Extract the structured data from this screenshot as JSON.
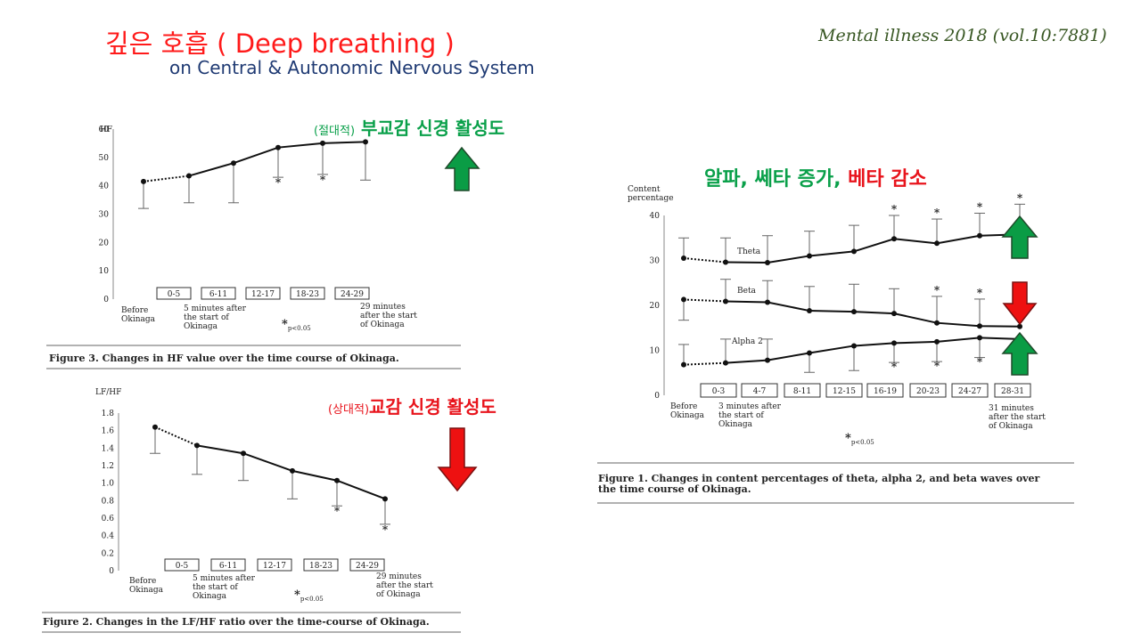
{
  "header": {
    "title": "깊은 호흡 ( Deep breathing )",
    "subtitle": "on Central & Autonomic Nervous System",
    "citation": "Mental illness 2018 (vol.10:7881)"
  },
  "annotations": {
    "hf_prefix": "(절대적)",
    "hf_text": "부교감 신경 활성도",
    "lfhf_prefix": "(상대적)",
    "lfhf_text": "교감 신경 활성도",
    "wave_increase": "알파, 쎄타 증가,",
    "wave_decrease": "베타 감소"
  },
  "colors": {
    "title": "#ff1a1a",
    "subtitle": "#1f3a73",
    "citation": "#385723",
    "annotation_green": "#0aa04a",
    "annotation_red": "#e8141c",
    "arrow_up": "#0a9c45",
    "arrow_down": "#ee1111"
  },
  "icons": {
    "increase": "arrow-up-icon",
    "decrease": "arrow-down-icon"
  },
  "chart_data": [
    {
      "type": "line",
      "title": "",
      "ylabel": "HF",
      "ylim": [
        0,
        60
      ],
      "yticks": [
        0,
        10,
        20,
        30,
        40,
        50,
        60
      ],
      "x_labels": [
        "Before Okinaga",
        "0-5",
        "6-11",
        "12-17",
        "18-23",
        "24-29"
      ],
      "start_note": "5 minutes after the start of Okinaga",
      "end_note": "29 minutes after the start of Okinaga",
      "significance_note": "*p<0.05",
      "series": [
        {
          "values": [
            41.5,
            43.5,
            48,
            53.5,
            55,
            55.5
          ],
          "error_low": [
            32,
            34,
            34,
            43,
            44,
            42
          ],
          "significant": [
            false,
            false,
            false,
            true,
            true,
            false
          ]
        }
      ],
      "caption": "Figure 3. Changes in HF value over the time course of Okinaga."
    },
    {
      "type": "line",
      "title": "",
      "ylabel": "LF/HF",
      "ylim": [
        0,
        1.8
      ],
      "yticks": [
        "0",
        "0.2",
        "0.4",
        "0.6",
        "0.8",
        "1.0",
        "1.2",
        "1.4",
        "1.6",
        "1.8"
      ],
      "x_labels": [
        "Before Okinaga",
        "0-5",
        "6-11",
        "12-17",
        "18-23",
        "24-29"
      ],
      "start_note": "5 minutes after the start of Okinaga",
      "end_note": "29 minutes after the start of Okinaga",
      "significance_note": "*p<0.05",
      "series": [
        {
          "values": [
            1.64,
            1.43,
            1.34,
            1.14,
            1.03,
            0.82
          ],
          "error_low": [
            1.34,
            1.1,
            1.03,
            0.82,
            0.74,
            0.53
          ],
          "significant": [
            false,
            false,
            false,
            false,
            true,
            true
          ]
        }
      ],
      "caption": "Figure 2. Changes in the LF/HF ratio over the time-course of Okinaga."
    },
    {
      "type": "line",
      "title": "",
      "ylabel": "Content percentage",
      "ylim": [
        0,
        40
      ],
      "yticks": [
        0,
        10,
        20,
        30,
        40
      ],
      "x_labels": [
        "Before Okinaga",
        "0-3",
        "4-7",
        "8-11",
        "12-15",
        "16-19",
        "20-23",
        "24-27",
        "28-31"
      ],
      "start_note": "3 minutes after the start of Okinaga",
      "end_note": "31 minutes after the start of Okinaga",
      "significance_note": "*p<0.05",
      "series": [
        {
          "name": "Theta",
          "values": [
            30.5,
            29.6,
            29.5,
            31,
            32,
            34.8,
            33.8,
            35.5,
            35.8
          ],
          "error": [
            35,
            35,
            35.5,
            36.5,
            37.8,
            40,
            39.2,
            40.5,
            42.5
          ],
          "error_dir": "up",
          "significant": [
            false,
            false,
            false,
            false,
            false,
            true,
            true,
            true,
            true
          ]
        },
        {
          "name": "Beta",
          "values": [
            21.3,
            20.9,
            20.7,
            18.8,
            18.6,
            18.2,
            16.1,
            15.4,
            15.3
          ],
          "error": [
            16.7,
            25.8,
            25.5,
            24.2,
            24.7,
            23.7,
            22,
            21.4,
            21
          ],
          "error_dir": "mixed",
          "significant": [
            false,
            false,
            false,
            false,
            false,
            false,
            true,
            true,
            false
          ]
        },
        {
          "name": "Alpha 2",
          "values": [
            6.8,
            7.2,
            7.8,
            9.4,
            11,
            11.6,
            11.9,
            12.8,
            12.5
          ],
          "error": [
            11.3,
            12.5,
            12.5,
            5.1,
            5.5,
            7.3,
            7.5,
            8.4,
            8.5
          ],
          "error_dir": "mixed",
          "significant": [
            false,
            false,
            false,
            false,
            false,
            true,
            true,
            true,
            false
          ]
        }
      ],
      "caption": "Figure 1. Changes in content percentages of theta, alpha 2, and beta waves over the time course of Okinaga."
    }
  ]
}
